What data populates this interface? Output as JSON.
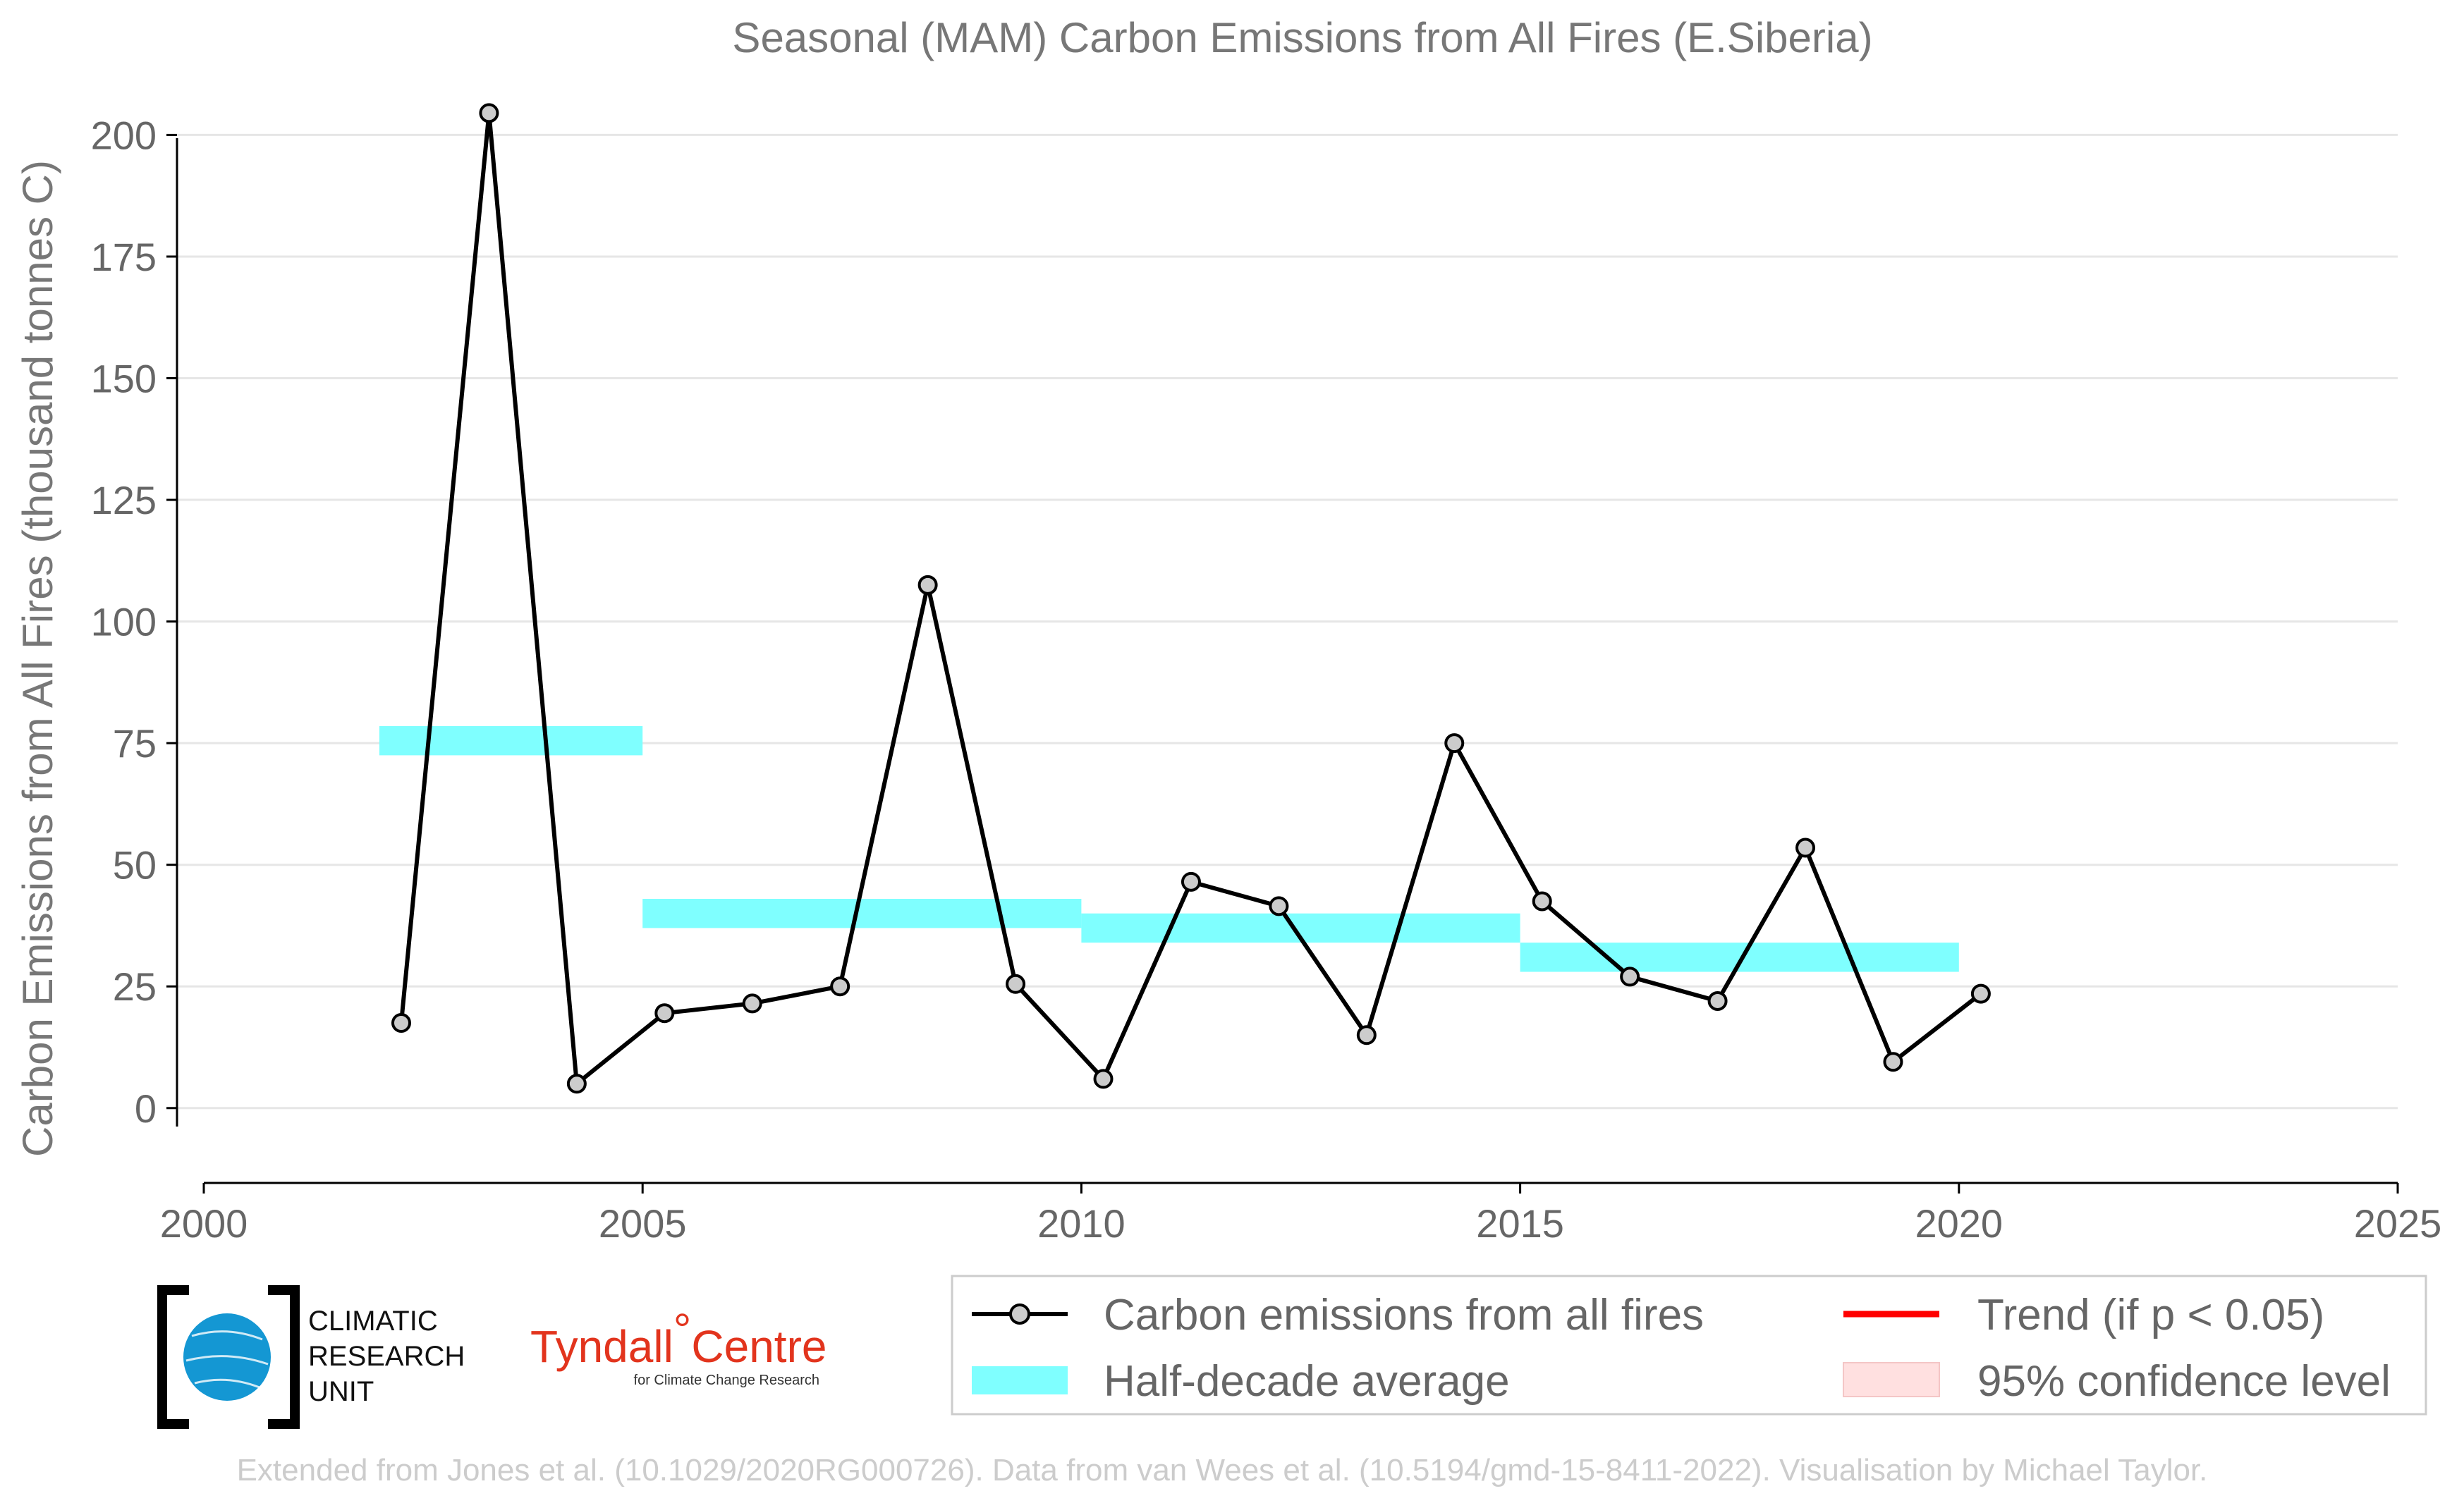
{
  "chart_data": {
    "type": "line",
    "title": "Seasonal (MAM) Carbon Emissions from All Fires (E.Siberia)",
    "xlabel": "",
    "ylabel": "Carbon Emissions from All Fires (thousand tonnes C)",
    "xlim": [
      2000,
      2025
    ],
    "ylim": [
      -8,
      206
    ],
    "x_ticks": [
      "2000",
      "2005",
      "2010",
      "2015",
      "2020",
      "2025"
    ],
    "y_ticks": [
      "0",
      "25",
      "50",
      "75",
      "100",
      "125",
      "150",
      "175",
      "200"
    ],
    "grid": "horizontal",
    "series": [
      {
        "name": "Carbon emissions from all fires",
        "color": "#000000",
        "marker_color": "#cccccc",
        "x": [
          2002,
          2003,
          2004,
          2005,
          2006,
          2007,
          2008,
          2009,
          2010,
          2011,
          2012,
          2013,
          2014,
          2015,
          2016,
          2017,
          2018,
          2019,
          2020
        ],
        "y": [
          17.5,
          204.5,
          5,
          19.5,
          21.5,
          25,
          107.5,
          25.5,
          6,
          46.5,
          41.5,
          15,
          75,
          42.5,
          27,
          22,
          53.5,
          9.5,
          23.5
        ]
      }
    ],
    "half_decade_average": {
      "name": "Half-decade average",
      "color": "#7fffff",
      "segments": [
        {
          "x0": 2002,
          "x1": 2005,
          "y": 75.5
        },
        {
          "x0": 2005,
          "x1": 2010,
          "y": 40
        },
        {
          "x0": 2010,
          "x1": 2015,
          "y": 37
        },
        {
          "x0": 2015,
          "x1": 2020,
          "y": 31
        }
      ]
    },
    "legend": {
      "placement": "bottom-right",
      "entries": [
        {
          "label": "Carbon emissions from all fires",
          "type": "line-marker",
          "color": "#000000"
        },
        {
          "label": "Trend (if p < 0.05)",
          "type": "line",
          "color": "#ff0000"
        },
        {
          "label": "Half-decade average",
          "type": "patch",
          "color": "#7fffff"
        },
        {
          "label": "95% confidence level",
          "type": "patch",
          "color": "#ffe0e0"
        }
      ]
    }
  },
  "logos": {
    "cru_lines": [
      "CLIMATIC",
      "RESEARCH",
      "UNIT"
    ],
    "tyndall_name": "Tyndall",
    "tyndall_degree": "°",
    "tyndall_centre": "Centre",
    "tyndall_sub": "for Climate Change Research"
  },
  "credit": "Extended from Jones et al. (10.1029/2020RG000726). Data from van Wees et al. (10.5194/gmd-15-8411-2022). Visualisation by Michael Taylor."
}
